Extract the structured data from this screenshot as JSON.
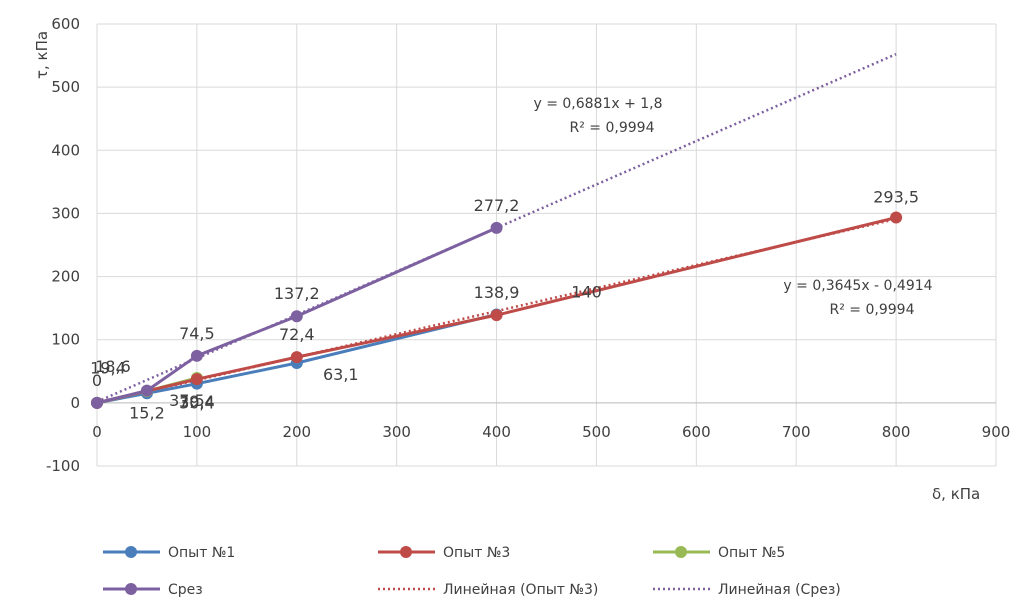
{
  "chart_data": {
    "type": "line",
    "xlabel": "δ, кПа",
    "ylabel": "τ, кПа",
    "xlim": [
      0,
      900
    ],
    "ylim": [
      -100,
      600
    ],
    "x_ticks": [
      "0",
      "100",
      "200",
      "300",
      "400",
      "500",
      "600",
      "700",
      "800",
      "900"
    ],
    "y_ticks": [
      "-100",
      "0",
      "100",
      "200",
      "300",
      "400",
      "500",
      "600"
    ],
    "grid": true,
    "legend_position": "bottom",
    "series": [
      {
        "name": "Опыт №1",
        "color": "#4a7ebb",
        "points": [
          [
            0,
            0
          ],
          [
            50,
            15.2
          ],
          [
            100,
            30.4
          ],
          [
            200,
            63.1
          ],
          [
            400,
            140
          ]
        ],
        "labels": [
          "",
          "15,2",
          "30,4",
          "63,1",
          "140"
        ]
      },
      {
        "name": "Опыт №3",
        "color": "#be4b48",
        "points": [
          [
            0,
            0
          ],
          [
            100,
            37.5
          ],
          [
            200,
            72.4
          ],
          [
            400,
            138.9
          ],
          [
            800,
            293.5
          ]
        ],
        "labels": [
          "",
          "37,5",
          "72,4",
          "138,9",
          "293,5"
        ]
      },
      {
        "name": "Опыт №5",
        "color": "#98b954",
        "points": [
          [
            0,
            0
          ],
          [
            50,
            18.6
          ],
          [
            100,
            39.4
          ]
        ],
        "labels": [
          "0",
          "18,6",
          "39,4"
        ]
      },
      {
        "name": "Срез",
        "color": "#7d60a0",
        "points": [
          [
            0,
            0
          ],
          [
            50,
            19.4
          ],
          [
            100,
            74.5
          ],
          [
            200,
            137.2
          ],
          [
            400,
            277.2
          ]
        ],
        "labels": [
          "",
          "19,4",
          "74,5",
          "137,2",
          "277,2"
        ]
      }
    ],
    "trendlines": [
      {
        "name": "Линейная (Опыт №3)",
        "color": "#be4b48",
        "slope": 0.3645,
        "intercept": -0.4914,
        "x_range": [
          0,
          800
        ],
        "equation": "y = 0,3645x - 0,4914",
        "r2": "R² = 0,9994"
      },
      {
        "name": "Линейная (Срез)",
        "color": "#7d60a0",
        "slope": 0.6881,
        "intercept": 1.8,
        "x_range": [
          0,
          800
        ],
        "equation": "y = 0,6881x + 1,8",
        "r2": "R² = 0,9994"
      }
    ]
  }
}
